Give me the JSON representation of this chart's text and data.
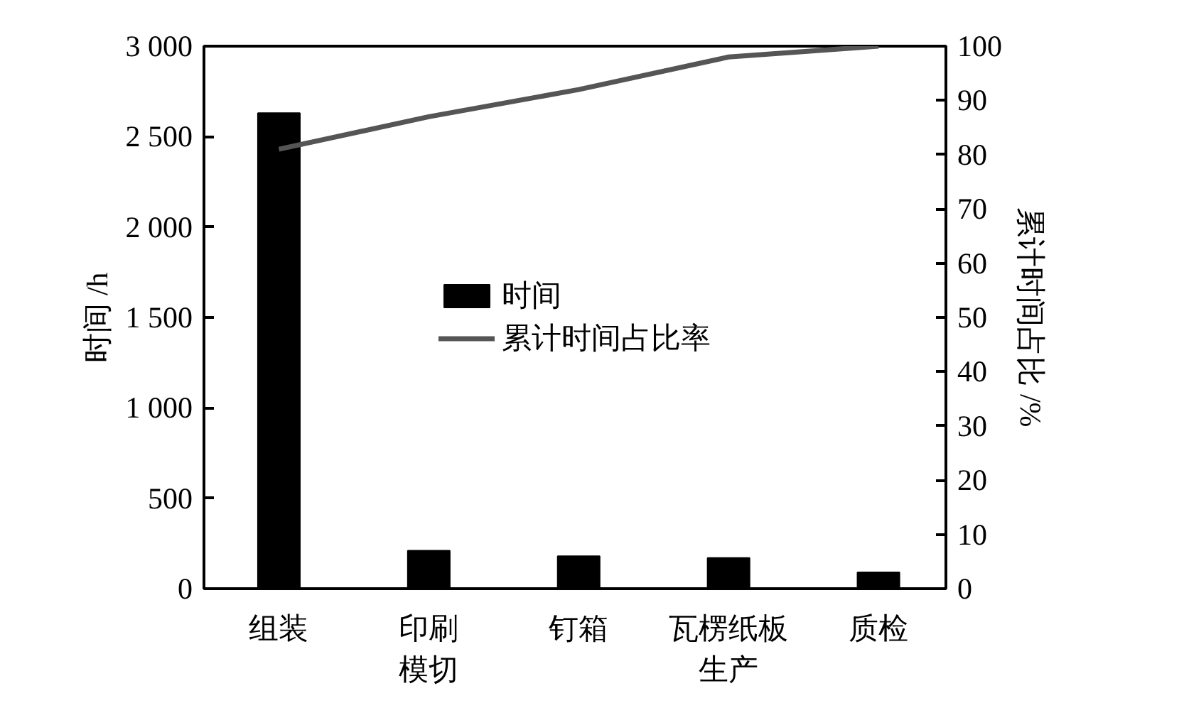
{
  "chart_data": {
    "type": "bar",
    "categories": [
      "组装",
      "印刷模切",
      "钉箱",
      "瓦楞纸板生产",
      "质检"
    ],
    "series": [
      {
        "name": "时间",
        "color": "#000000",
        "values": [
          2630,
          210,
          180,
          170,
          90
        ]
      },
      {
        "name": "累计时间占比率",
        "type": "line",
        "axis": "y2",
        "color": "#555555",
        "values": [
          81,
          87,
          92,
          98,
          100
        ]
      }
    ],
    "ylabel": "时间 /h",
    "y2label": "累计时间占比 /%",
    "ylim": [
      0,
      3000
    ],
    "yticks": [
      0,
      500,
      {
        "value": 1000,
        "label": "1 000"
      },
      {
        "value": 1500,
        "label": "1 500"
      },
      {
        "value": 2000,
        "label": "2 000"
      },
      {
        "value": 2500,
        "label": "2 500"
      },
      {
        "value": 3000,
        "label": "3 000"
      }
    ],
    "y2lim": [
      0,
      100
    ],
    "y2ticks": [
      0,
      10,
      20,
      30,
      40,
      50,
      60,
      70,
      80,
      90,
      100
    ],
    "grid": false,
    "legend": "center",
    "marker": "none",
    "line_style": "solid"
  }
}
